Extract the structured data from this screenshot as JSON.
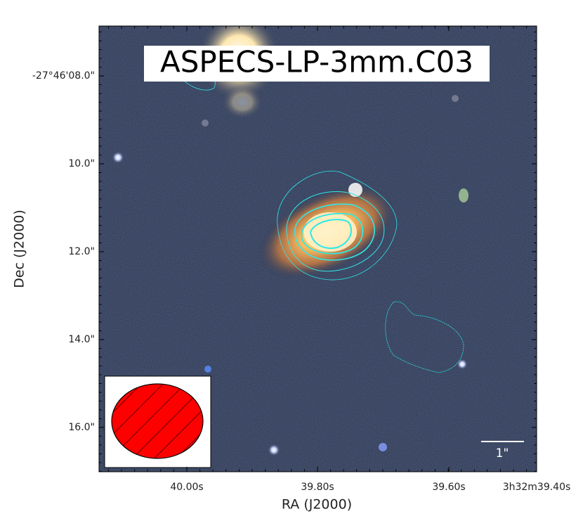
{
  "title": "ASPECS-LP-3mm.C03",
  "x_axis": {
    "label": "RA (J2000)",
    "ticks": [
      "40.00s",
      "39.80s",
      "39.60s",
      "3h32m39.40s"
    ]
  },
  "y_axis": {
    "label": "Dec (J2000)",
    "ticks": [
      "-27°46'08.0\"",
      "10.0\"",
      "12.0\"",
      "14.0\"",
      "16.0\""
    ]
  },
  "scale_bar": {
    "label": "1\""
  }
}
